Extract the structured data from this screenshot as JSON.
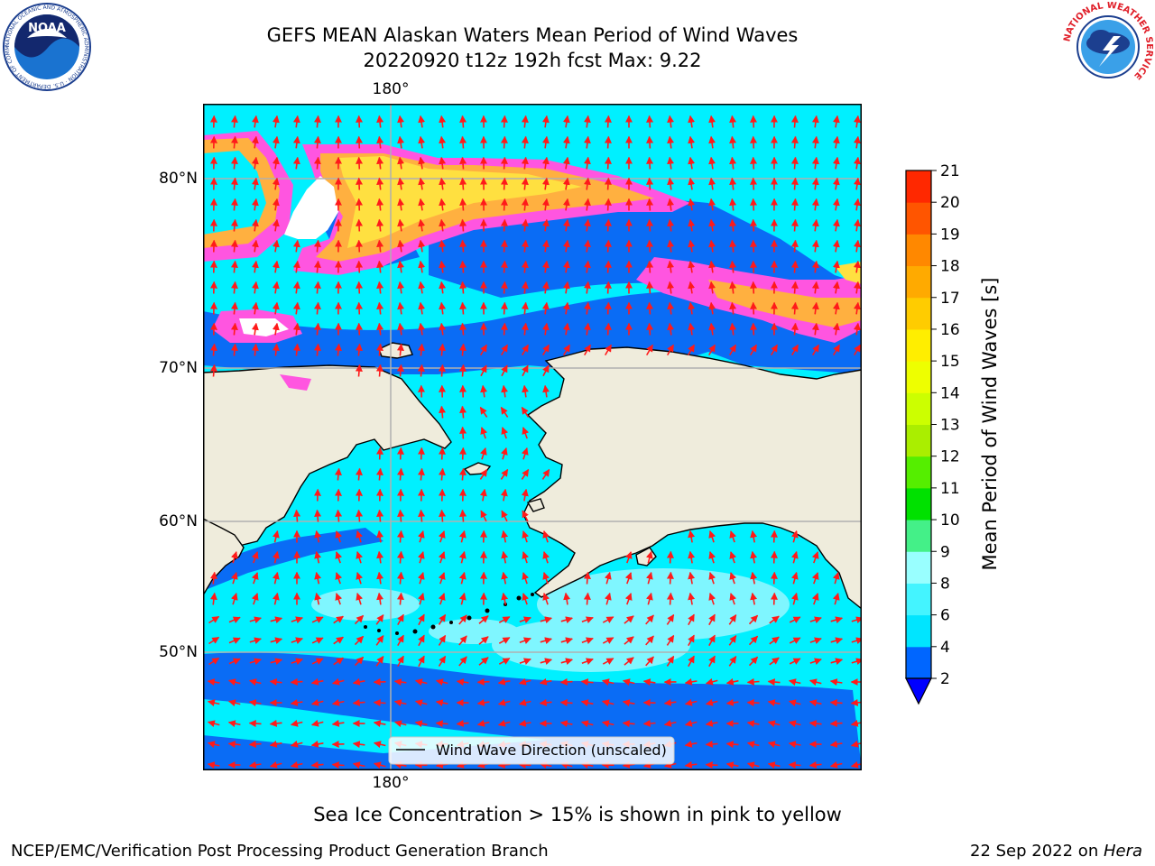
{
  "title": {
    "line1": "GEFS MEAN Alaskan Waters Mean Period of Wind Waves",
    "line2": "20220920 t12z 192h fcst   Max: 9.22"
  },
  "map": {
    "lon_labels": [
      "180°",
      "180°"
    ],
    "lat_labels": [
      "80°N",
      "70°N",
      "60°N",
      "50°N"
    ],
    "colors": {
      "land": "#efecdc",
      "ice_pink": "#ff55e0",
      "ice_orange": "#ffb040",
      "ice_yellow": "#ffe040",
      "arrow": "#ff1a1a",
      "grid": "#b0b0b0"
    }
  },
  "legend": {
    "label": "Wind Wave Direction (unscaled)"
  },
  "colorbar": {
    "title": "Mean Period of Wind Waves [s]",
    "ticks": [
      "2",
      "4",
      "6",
      "8",
      "9",
      "10",
      "11",
      "12",
      "13",
      "14",
      "15",
      "16",
      "17",
      "18",
      "19",
      "20",
      "21"
    ],
    "colors": [
      "#0066ff",
      "#00e5ff",
      "#44f4ff",
      "#99ffff",
      "#44f088",
      "#00e100",
      "#55ee00",
      "#aaee00",
      "#ccff00",
      "#eeff00",
      "#ffee00",
      "#ffcc00",
      "#ffaa00",
      "#ff8800",
      "#ff5500",
      "#ff2800",
      "#ff0000"
    ],
    "extend_color": "#0000ff"
  },
  "ice_note": "Sea Ice Concentration > 15% is shown in pink to yellow",
  "footer": {
    "left": "NCEP/EMC/Verification Post Processing Product Generation Branch",
    "date": "22 Sep 2022 on ",
    "host": "Hera"
  },
  "logos": {
    "noaa_text": "NOAA",
    "noaa_ring": "NATIONAL OCEANIC AND ATMOSPHERIC ADMINISTRATION · U.S. DEPARTMENT OF COMMERCE",
    "nws_ring": "NATIONAL WEATHER SERVICE"
  }
}
